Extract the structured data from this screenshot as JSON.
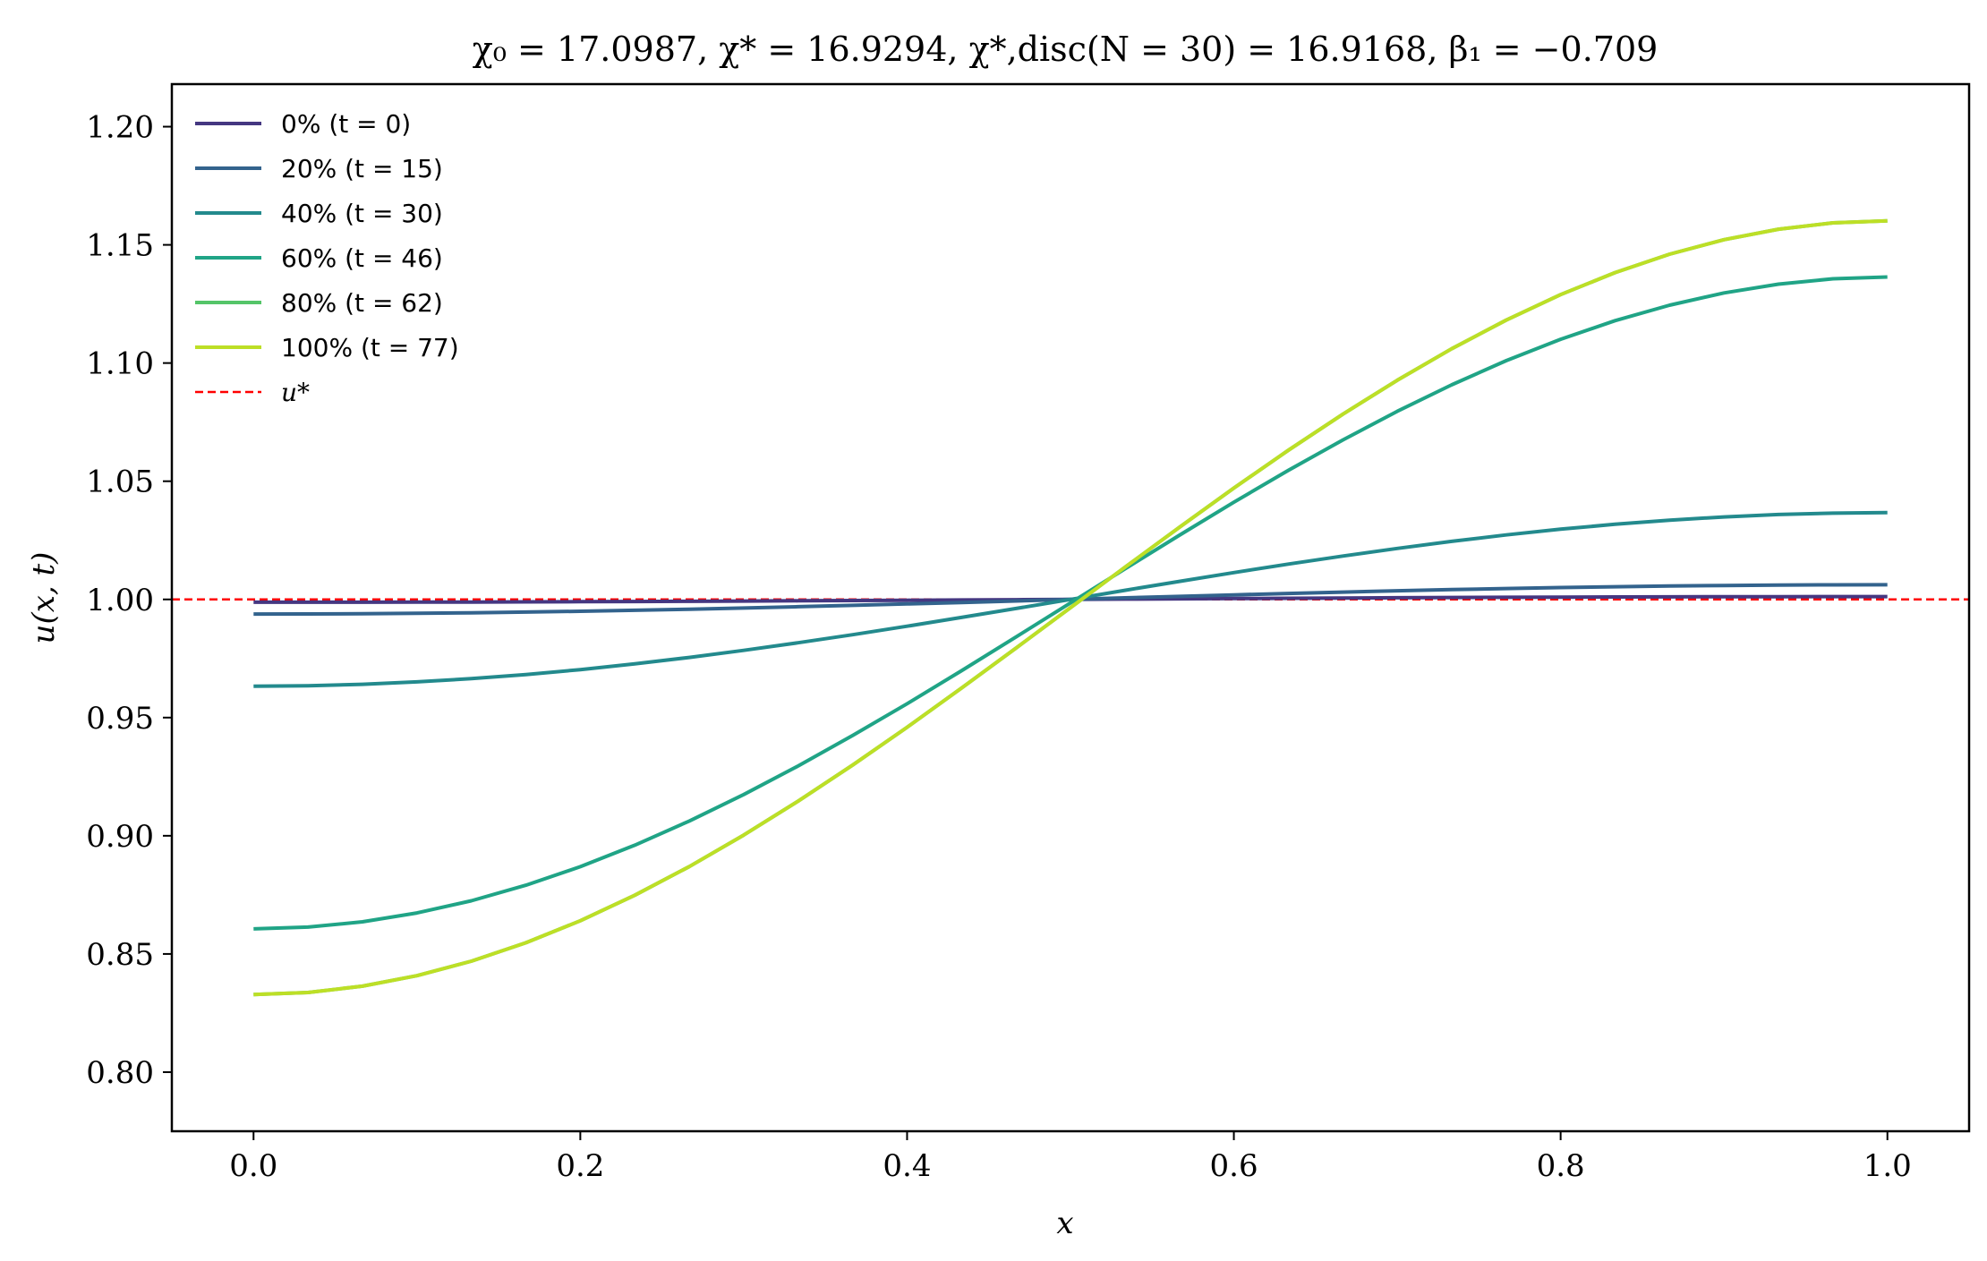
{
  "chart_data": {
    "type": "line",
    "title": "χ₀ = 17.0987,  χ* = 16.9294,  χ*,disc(N = 30) = 16.9168,  β₁ = −0.709",
    "xlabel": "x",
    "ylabel": "u(x, t)",
    "xlim": [
      -0.05,
      1.05
    ],
    "ylim": [
      0.775,
      1.218
    ],
    "xticks": [
      0.0,
      0.2,
      0.4,
      0.6,
      0.8,
      1.0
    ],
    "xtick_labels": [
      "0.0",
      "0.2",
      "0.4",
      "0.6",
      "0.8",
      "1.0"
    ],
    "yticks": [
      0.8,
      0.85,
      0.9,
      0.95,
      1.0,
      1.05,
      1.1,
      1.15,
      1.2
    ],
    "ytick_labels": [
      "0.80",
      "0.85",
      "0.90",
      "0.95",
      "1.00",
      "1.05",
      "1.10",
      "1.15",
      "1.20"
    ],
    "grid": false,
    "legend_position": "top-left",
    "x": [
      0.0,
      0.0333,
      0.0667,
      0.1,
      0.1333,
      0.1667,
      0.2,
      0.2333,
      0.2667,
      0.3,
      0.3333,
      0.3667,
      0.4,
      0.4333,
      0.4667,
      0.5,
      0.5333,
      0.5667,
      0.6,
      0.6333,
      0.6667,
      0.7,
      0.7333,
      0.7667,
      0.8,
      0.8333,
      0.8667,
      0.9,
      0.9333,
      0.9667,
      1.0
    ],
    "series": [
      {
        "name": "0% (t = 0)",
        "color": "#453781",
        "amp": 0.0012,
        "mid": 1.0
      },
      {
        "name": "20% (t = 15)",
        "color": "#33638d",
        "amp": 0.0062,
        "mid": 1.0
      },
      {
        "name": "40% (t = 30)",
        "color": "#238a8d",
        "amp": 0.0367,
        "mid": 1.0
      },
      {
        "name": "60% (t = 46)",
        "color": "#20a486",
        "amp": 0.1379,
        "mid": 0.9985
      },
      {
        "name": "80% (t = 62)",
        "color": "#54c568",
        "amp": 0.1637,
        "mid": 0.9965
      },
      {
        "name": "100% (t = 77)",
        "color": "#bddf26",
        "amp": 0.1637,
        "mid": 0.9965
      }
    ],
    "reference_line": {
      "name": "u*",
      "y": 1.0,
      "color": "#ff0000",
      "style": "dashed"
    }
  }
}
